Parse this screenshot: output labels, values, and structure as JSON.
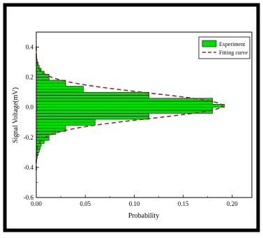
{
  "chart_data": {
    "type": "bar",
    "orientation": "horizontal",
    "xlabel": "Probability",
    "ylabel": "Signal Voltage(mV)",
    "xlim": [
      0.0,
      0.22
    ],
    "ylim": [
      -0.6,
      0.5
    ],
    "xticks": [
      "0.00",
      "0.05",
      "0.10",
      "0.15",
      "0.20"
    ],
    "xtick_values": [
      0.0,
      0.05,
      0.1,
      0.15,
      0.2
    ],
    "yticks": [
      "-0.6",
      "-0.4",
      "-0.2",
      "0.0",
      "0.2",
      "0.4"
    ],
    "ytick_values": [
      -0.6,
      -0.4,
      -0.2,
      0.0,
      0.2,
      0.4
    ],
    "grid": false,
    "legend_position": "top-right",
    "colors": {
      "bars": "#00dd00",
      "bar_edge": "#000000",
      "fit_line": "#8b2b2b",
      "frame": "#000000"
    },
    "series": [
      {
        "name": "Experiment",
        "bin_width": 0.02,
        "bin_centers": [
          0.33,
          0.31,
          0.29,
          0.27,
          0.25,
          0.23,
          0.21,
          0.19,
          0.17,
          0.15,
          0.13,
          0.11,
          0.09,
          0.07,
          0.05,
          0.03,
          0.01,
          -0.01,
          -0.03,
          -0.05,
          -0.07,
          -0.09,
          -0.11,
          -0.13,
          -0.15,
          -0.17,
          -0.19,
          -0.21,
          -0.23,
          -0.25,
          -0.27,
          -0.29,
          -0.31,
          -0.33,
          -0.35
        ],
        "values": [
          0.0005,
          0.001,
          0.002,
          0.003,
          0.005,
          0.008,
          0.013,
          0.013,
          0.03,
          0.03,
          0.048,
          0.048,
          0.115,
          0.115,
          0.18,
          0.18,
          0.192,
          0.18,
          0.18,
          0.115,
          0.115,
          0.06,
          0.06,
          0.03,
          0.03,
          0.02,
          0.013,
          0.013,
          0.008,
          0.005,
          0.004,
          0.003,
          0.002,
          0.001,
          0.0005
        ]
      },
      {
        "name": "Fitting curve",
        "type": "line",
        "style": "dashed",
        "center": 0.01,
        "sigma": 0.085,
        "amplitude": 0.19
      }
    ]
  }
}
